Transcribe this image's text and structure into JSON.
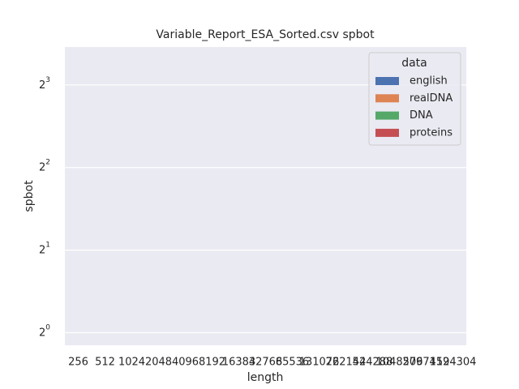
{
  "chart_data": {
    "type": "bar",
    "title": "Variable_Report_ESA_Sorted.csv spbot",
    "x_label": "length",
    "y_label": "spbot",
    "categories": [
      "256",
      "512",
      "1024",
      "2048",
      "4096",
      "8192",
      "16384",
      "32768",
      "65536",
      "131072",
      "262144",
      "524288",
      "1048576",
      "2097152",
      "4194304"
    ],
    "series": [
      {
        "name": "english",
        "color": "#4c72b0",
        "values": [
          null,
          null,
          null,
          null,
          null,
          null,
          null,
          null,
          null,
          null,
          null,
          null,
          null,
          null,
          null
        ]
      },
      {
        "name": "realDNA",
        "color": "#dd8452",
        "values": [
          null,
          null,
          null,
          null,
          null,
          null,
          null,
          null,
          null,
          null,
          null,
          null,
          null,
          null,
          null
        ]
      },
      {
        "name": "DNA",
        "color": "#55a868",
        "values": [
          null,
          null,
          null,
          null,
          null,
          null,
          null,
          null,
          null,
          null,
          null,
          null,
          null,
          null,
          null
        ]
      },
      {
        "name": "proteins",
        "color": "#c44e52",
        "values": [
          null,
          null,
          null,
          null,
          null,
          null,
          null,
          null,
          null,
          null,
          null,
          null,
          null,
          null,
          null
        ]
      }
    ],
    "legend_title": "data",
    "legend": "upper right",
    "ylim": [
      0.9,
      11
    ],
    "log_scale_y": 2,
    "yticks": [
      {
        "value": 1,
        "label": "2^0"
      },
      {
        "value": 2,
        "label": "2^1"
      },
      {
        "value": 4,
        "label": "2^2"
      },
      {
        "value": 8,
        "label": "2^3"
      }
    ],
    "grid": true
  }
}
